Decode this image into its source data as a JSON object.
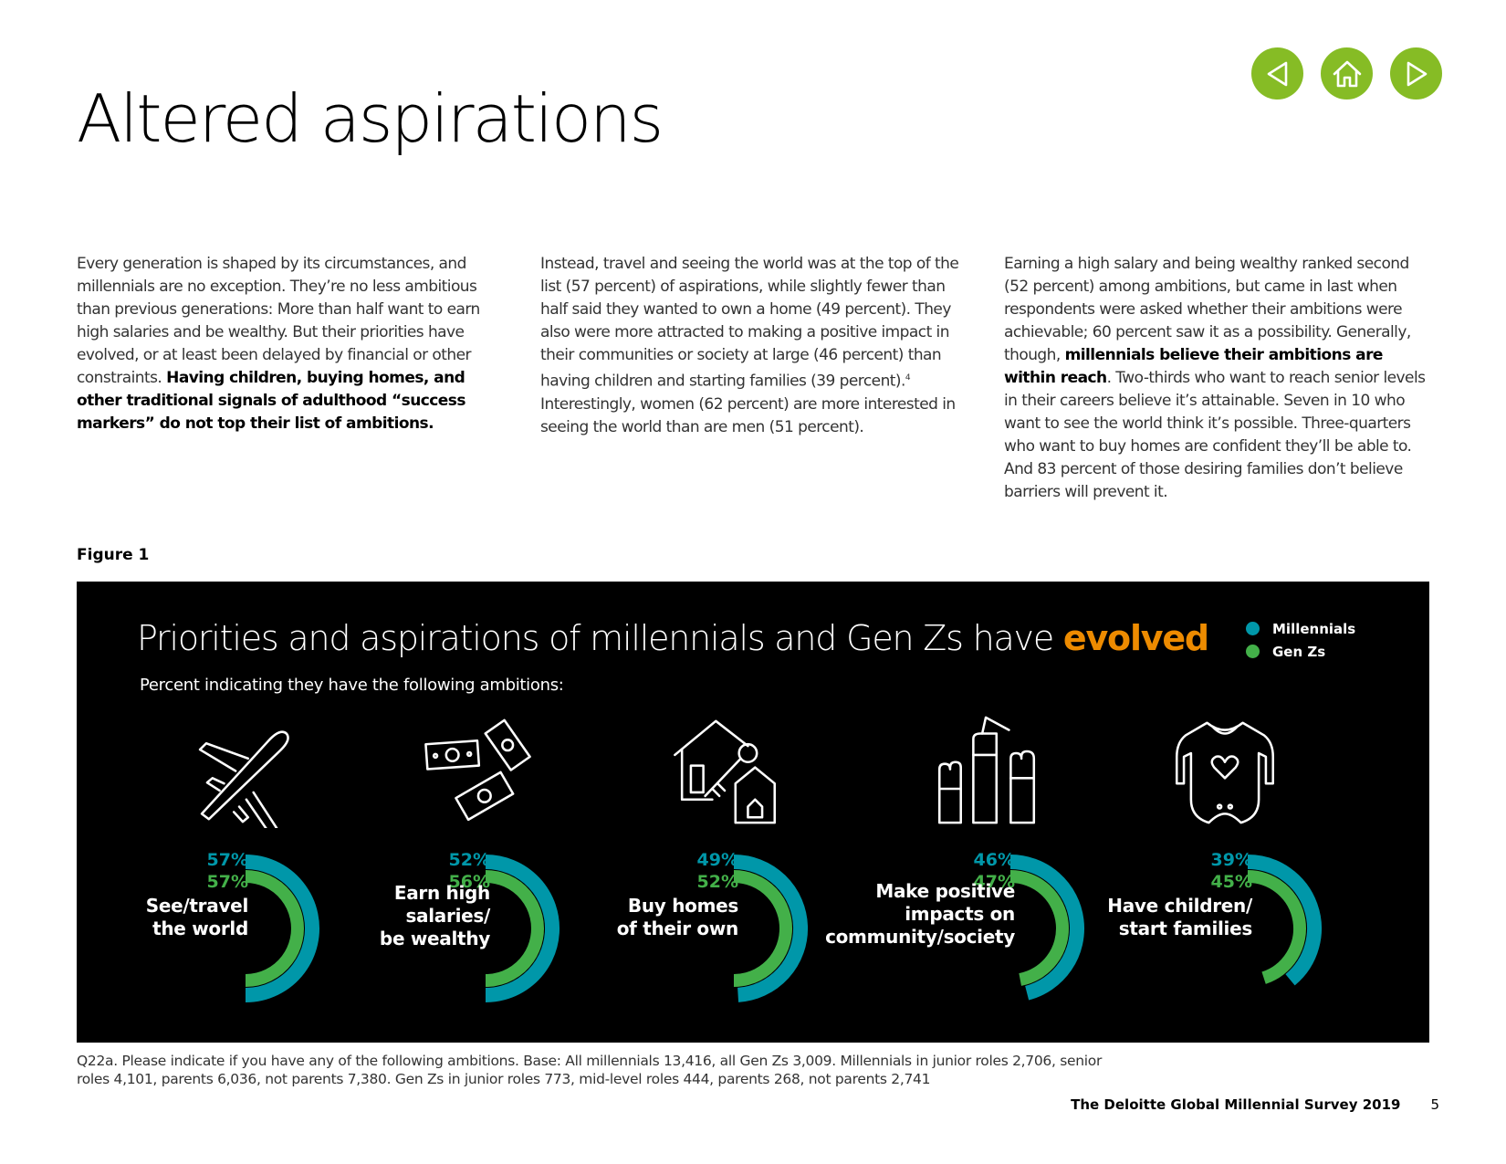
{
  "nav": {
    "prev_icon": "triangle-left-icon",
    "home_icon": "home-icon",
    "next_icon": "triangle-right-icon",
    "accent": "#86bc25"
  },
  "page_title": "Altered aspirations",
  "columns": [
    {
      "text": "Every generation is shaped by its circumstances, and millennials are no exception. They’re no less ambitious than previous generations: More than half want to earn high salaries and be wealthy. But their priorities have evolved, or at least been delayed by financial or other constraints. ",
      "bold": "Having children, buying homes, and other traditional signals of adulthood “success markers” do not top their list of ambitions."
    },
    {
      "text_a": "Instead, travel and seeing the world was at the top of the list (57 percent) of aspirations, while slightly fewer than half said they wanted to own a home (49 percent). They also were more attracted to making a positive impact in their communities or society at large (46 percent) than having children and starting families (39 percent).",
      "footnote": "4",
      "text_b": " Interestingly, women (62 percent) are more interested in seeing the world than are men (51 percent)."
    },
    {
      "text_a": "Earning a high salary and being wealthy ranked second (52 percent) among ambitions, but came in last when respondents were asked whether their ambitions were achievable; 60 percent saw it as a possibility. Generally, though, ",
      "bold": "millennials believe their ambitions are within reach",
      "text_b": ". Two-thirds who want to reach senior levels in their careers believe it’s attainable. Seven in 10 who want to see the world think it’s possible. Three-quarters who want to buy homes are confident they’ll be able to. And 83 percent of those desiring families don’t believe barriers will prevent it."
    }
  ],
  "figure_label": "Figure 1",
  "chart_data": {
    "type": "radial-bar",
    "title_main": "Priorities and aspirations of millennials and Gen Zs have ",
    "title_accent": "evolved",
    "subtitle": "Percent indicating they have the following ambitions:",
    "unit": "%",
    "colors": {
      "millennials": "#0097a9",
      "genz": "#43b049",
      "accent": "#ed8b00"
    },
    "legend": [
      "Millennials",
      "Gen Zs"
    ],
    "categories": [
      {
        "label_lines": [
          "See/travel",
          "the world"
        ],
        "icon": "airplane-icon",
        "millennials": 57,
        "genz": 57
      },
      {
        "label_lines": [
          "Earn high",
          "salaries/",
          "be wealthy"
        ],
        "icon": "money-icon",
        "millennials": 52,
        "genz": 56
      },
      {
        "label_lines": [
          "Buy homes",
          "of their own"
        ],
        "icon": "house-key-icon",
        "millennials": 49,
        "genz": 52
      },
      {
        "label_lines": [
          "Make positive",
          "impacts on",
          "community/society"
        ],
        "icon": "raised-fists-icon",
        "millennials": 46,
        "genz": 47
      },
      {
        "label_lines": [
          "Have children/",
          "start families"
        ],
        "icon": "baby-onesie-icon",
        "millennials": 39,
        "genz": 45
      }
    ]
  },
  "note": "Q22a. Please indicate if you have any of the following ambitions. Base: All millennials 13,416, all Gen Zs 3,009. Millennials in junior roles 2,706, senior roles 4,101, parents 6,036, not parents 7,380. Gen Zs in junior roles 773, mid-level roles 444, parents 268, not parents 2,741",
  "footer": {
    "title": "The Deloitte Global Millennial Survey 2019",
    "page": "5"
  }
}
